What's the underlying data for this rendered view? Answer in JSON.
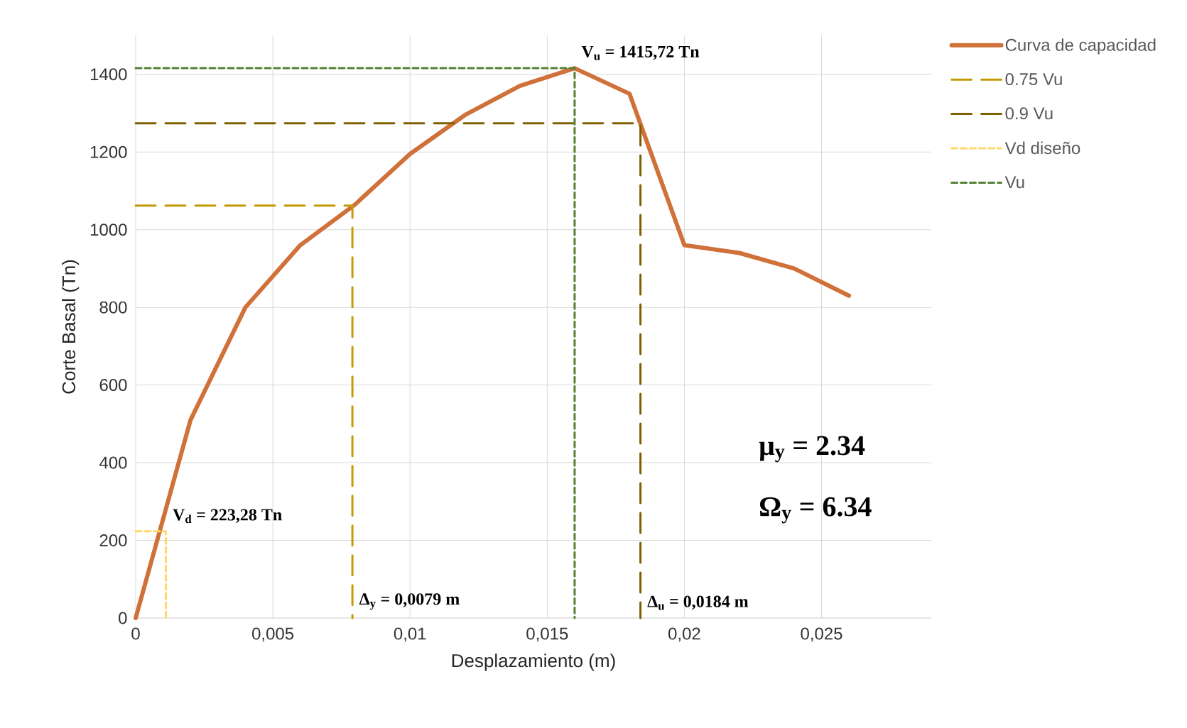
{
  "chart_data": {
    "type": "line",
    "xlabel": "Desplazamiento (m)",
    "ylabel": "Corte Basal (Tn)",
    "xlim": [
      0,
      0.029
    ],
    "ylim": [
      0,
      1500
    ],
    "xticks": [
      0,
      {
        "value": 0.005,
        "label": "0,005"
      },
      {
        "value": 0.01,
        "label": "0,01"
      },
      {
        "value": 0.015,
        "label": "0,015"
      },
      {
        "value": 0.02,
        "label": "0,02"
      },
      {
        "value": 0.025,
        "label": "0,025"
      }
    ],
    "yticks": [
      0,
      200,
      400,
      600,
      800,
      1000,
      1200,
      1400
    ],
    "grid": true,
    "legend": "top right",
    "marker": "none",
    "series": [
      {
        "name": "Curva de capacidad",
        "color": "#d0713a",
        "line_style": "solid",
        "x": [
          0,
          0.002,
          0.004,
          0.006,
          0.008,
          0.01,
          0.012,
          0.014,
          0.016,
          0.018,
          0.02,
          0.022,
          0.024,
          0.026
        ],
        "values": [
          0,
          510,
          800,
          960,
          1065,
          1195,
          1295,
          1370,
          1415.72,
          1350,
          960,
          940,
          900,
          830
        ]
      },
      {
        "name": "0.75 Vu",
        "color": "#c49a06",
        "line_style": "dashed",
        "x": [
          0,
          0.0079,
          0.0079
        ],
        "values": [
          1062,
          1062,
          0
        ]
      },
      {
        "name": "0.9 Vu",
        "color": "#7f6000",
        "line_style": "dashed",
        "x": [
          0,
          0.0184,
          0.0184
        ],
        "values": [
          1274,
          1274,
          0
        ]
      },
      {
        "name": "Vd diseño",
        "color": "#ffd966",
        "line_style": "dotted",
        "x": [
          0,
          0.0011,
          0.0011
        ],
        "values": [
          223.28,
          223.28,
          0
        ]
      },
      {
        "name": "Vu",
        "color": "#548235",
        "line_style": "dotted",
        "x": [
          0,
          0.016,
          0.016
        ],
        "values": [
          1415.72,
          1415.72,
          0
        ]
      }
    ],
    "annotations": [
      {
        "text": "V$_{u}$ = 1415,72 Tn",
        "x": 0.016,
        "y": 1415.72
      },
      {
        "text": "V$_{d}$ = 223,28 Tn",
        "x": 0.0011,
        "y": 223.28
      },
      {
        "text": "Δ$_{y}$ = 0,0079 m",
        "x": 0.0079,
        "y": 0
      },
      {
        "text": "Δ$_{u}$ = 0,0184 m",
        "x": 0.0184,
        "y": 0
      },
      "μ$_{y}$ = 2.34",
      "Ω$_{y}$ = 6.34"
    ]
  }
}
